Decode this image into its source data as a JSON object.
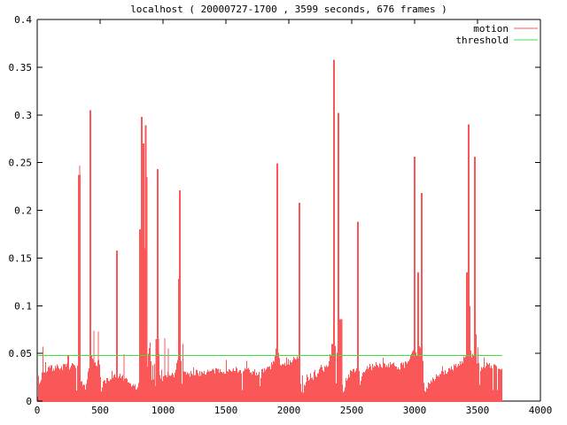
{
  "title": "localhost ( 20000727-1700 , 3599 seconds, 676 frames )",
  "colors": {
    "motion": "#fa5858",
    "threshold": "#44dd44",
    "axis": "#000000",
    "background": "#ffffff"
  },
  "chart_data": {
    "type": "area",
    "title": "localhost ( 20000727-1700 , 3599 seconds, 676 frames )",
    "xlabel": "",
    "ylabel": "",
    "x_range": [
      0,
      4000
    ],
    "y_range": [
      0,
      0.4
    ],
    "x_ticks": [
      "0",
      "500",
      "1000",
      "1500",
      "2000",
      "2500",
      "3000",
      "3500",
      "4000"
    ],
    "y_ticks": [
      "0",
      "0.05",
      "0.1",
      "0.15",
      "0.2",
      "0.25",
      "0.3",
      "0.35",
      "0.4"
    ],
    "grid": "off",
    "legend_position": "top-right-inside",
    "legend": [
      {
        "label": "motion",
        "color": "#fa5858"
      },
      {
        "label": "threshold",
        "color": "#44dd44"
      }
    ],
    "threshold_value": 0.048,
    "data_end_x": 3700,
    "series": {
      "name": "motion",
      "noise_amplitude": 0.0035,
      "baseline_points": [
        [
          0,
          0.016
        ],
        [
          20,
          0.019
        ],
        [
          40,
          0.031
        ],
        [
          120,
          0.035
        ],
        [
          300,
          0.037
        ],
        [
          322,
          0.034
        ],
        [
          332,
          0.018
        ],
        [
          342,
          0.016
        ],
        [
          352,
          0.019
        ],
        [
          362,
          0.012
        ],
        [
          372,
          0.017
        ],
        [
          382,
          0.012
        ],
        [
          392,
          0.019
        ],
        [
          402,
          0.028
        ],
        [
          414,
          0.037
        ],
        [
          428,
          0.046
        ],
        [
          448,
          0.042
        ],
        [
          470,
          0.04
        ],
        [
          492,
          0.04
        ],
        [
          500,
          0.026
        ],
        [
          507,
          0.008
        ],
        [
          514,
          0.012
        ],
        [
          524,
          0.021
        ],
        [
          600,
          0.024
        ],
        [
          650,
          0.027
        ],
        [
          692,
          0.022
        ],
        [
          730,
          0.018
        ],
        [
          790,
          0.014
        ],
        [
          812,
          0.018
        ],
        [
          822,
          0.03
        ],
        [
          868,
          0.03
        ],
        [
          885,
          0.055
        ],
        [
          898,
          0.06
        ],
        [
          906,
          0.012
        ],
        [
          914,
          0.05
        ],
        [
          920,
          0.012
        ],
        [
          928,
          0.048
        ],
        [
          936,
          0.014
        ],
        [
          944,
          0.052
        ],
        [
          952,
          0.06
        ],
        [
          962,
          0.055
        ],
        [
          972,
          0.028
        ],
        [
          992,
          0.024
        ],
        [
          1010,
          0.03
        ],
        [
          1050,
          0.026
        ],
        [
          1085,
          0.028
        ],
        [
          1110,
          0.04
        ],
        [
          1140,
          0.046
        ],
        [
          1150,
          0.012
        ],
        [
          1160,
          0.03
        ],
        [
          1190,
          0.028
        ],
        [
          1300,
          0.03
        ],
        [
          1460,
          0.032
        ],
        [
          1600,
          0.033
        ],
        [
          1705,
          0.031
        ],
        [
          1760,
          0.03
        ],
        [
          1768,
          0.013
        ],
        [
          1778,
          0.03
        ],
        [
          1850,
          0.036
        ],
        [
          1882,
          0.042
        ],
        [
          1898,
          0.05
        ],
        [
          1915,
          0.05
        ],
        [
          1925,
          0.04
        ],
        [
          1970,
          0.04
        ],
        [
          2030,
          0.043
        ],
        [
          2065,
          0.046
        ],
        [
          2078,
          0.05
        ],
        [
          2092,
          0.02
        ],
        [
          2098,
          0.005
        ],
        [
          2106,
          0.025
        ],
        [
          2112,
          0.008
        ],
        [
          2122,
          0.022
        ],
        [
          2132,
          0.015
        ],
        [
          2142,
          0.03
        ],
        [
          2152,
          0.018
        ],
        [
          2166,
          0.028
        ],
        [
          2182,
          0.022
        ],
        [
          2202,
          0.03
        ],
        [
          2216,
          0.025
        ],
        [
          2232,
          0.032
        ],
        [
          2252,
          0.035
        ],
        [
          2272,
          0.03
        ],
        [
          2292,
          0.038
        ],
        [
          2312,
          0.04
        ],
        [
          2332,
          0.05
        ],
        [
          2348,
          0.062
        ],
        [
          2368,
          0.055
        ],
        [
          2382,
          0.05
        ],
        [
          2398,
          0.035
        ],
        [
          2424,
          0.02
        ],
        [
          2432,
          0.005
        ],
        [
          2442,
          0.012
        ],
        [
          2450,
          0.022
        ],
        [
          2472,
          0.028
        ],
        [
          2502,
          0.03
        ],
        [
          2532,
          0.035
        ],
        [
          2544,
          0.04
        ],
        [
          2558,
          0.03
        ],
        [
          2566,
          0.015
        ],
        [
          2578,
          0.028
        ],
        [
          2602,
          0.033
        ],
        [
          2652,
          0.036
        ],
        [
          2702,
          0.038
        ],
        [
          2802,
          0.038
        ],
        [
          2852,
          0.036
        ],
        [
          2902,
          0.037
        ],
        [
          2942,
          0.04
        ],
        [
          2968,
          0.045
        ],
        [
          2988,
          0.055
        ],
        [
          3012,
          0.05
        ],
        [
          3040,
          0.055
        ],
        [
          3062,
          0.05
        ],
        [
          3072,
          0.01
        ],
        [
          3082,
          0.008
        ],
        [
          3092,
          0.015
        ],
        [
          3112,
          0.02
        ],
        [
          3152,
          0.024
        ],
        [
          3202,
          0.028
        ],
        [
          3262,
          0.032
        ],
        [
          3312,
          0.036
        ],
        [
          3362,
          0.04
        ],
        [
          3402,
          0.046
        ],
        [
          3420,
          0.05
        ],
        [
          3442,
          0.05
        ],
        [
          3470,
          0.046
        ],
        [
          3494,
          0.04
        ],
        [
          3506,
          0.05
        ],
        [
          3512,
          0.008
        ],
        [
          3522,
          0.035
        ],
        [
          3562,
          0.038
        ],
        [
          3622,
          0.036
        ],
        [
          3700,
          0.035
        ]
      ],
      "spikes": [
        [
          45,
          0.057,
          1
        ],
        [
          335,
          0.237,
          3
        ],
        [
          338,
          0.247,
          1
        ],
        [
          423,
          0.305,
          2
        ],
        [
          451,
          0.074,
          1
        ],
        [
          486,
          0.073,
          1
        ],
        [
          634,
          0.158,
          2
        ],
        [
          690,
          0.049,
          1
        ],
        [
          820,
          0.18,
          3
        ],
        [
          830,
          0.298,
          2
        ],
        [
          841,
          0.27,
          3
        ],
        [
          852,
          0.16,
          2
        ],
        [
          862,
          0.289,
          2
        ],
        [
          871,
          0.235,
          2
        ],
        [
          955,
          0.065,
          4
        ],
        [
          958,
          0.243,
          2
        ],
        [
          1014,
          0.066,
          1
        ],
        [
          1042,
          0.055,
          1
        ],
        [
          1130,
          0.128,
          3
        ],
        [
          1135,
          0.221,
          2
        ],
        [
          1158,
          0.06,
          1
        ],
        [
          1906,
          0.055,
          3
        ],
        [
          1908,
          0.249,
          2
        ],
        [
          2084,
          0.208,
          2
        ],
        [
          2359,
          0.358,
          2
        ],
        [
          2394,
          0.302,
          2
        ],
        [
          2407,
          0.086,
          5
        ],
        [
          2549,
          0.188,
          2
        ],
        [
          3000,
          0.256,
          2
        ],
        [
          3028,
          0.135,
          2
        ],
        [
          3056,
          0.218,
          2
        ],
        [
          3424,
          0.135,
          4
        ],
        [
          3429,
          0.29,
          2
        ],
        [
          3438,
          0.1,
          2
        ],
        [
          3479,
          0.256,
          2
        ],
        [
          3486,
          0.07,
          2
        ],
        [
          3502,
          0.056,
          1
        ]
      ]
    }
  }
}
